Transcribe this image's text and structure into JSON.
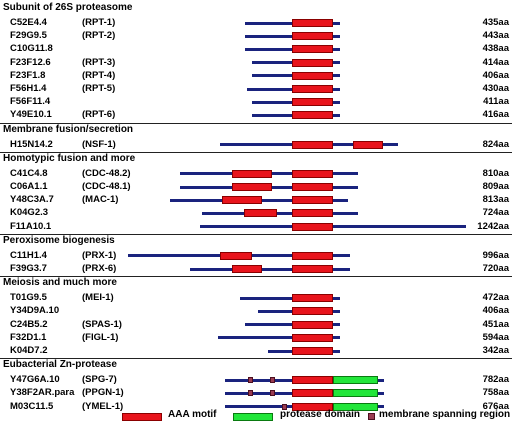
{
  "colors": {
    "backbone": "#1a237e",
    "aaa": "#e8141c",
    "protease": "#22e63a",
    "membrane": "#9a3b52"
  },
  "sections": [
    {
      "title": "Subunit of 26S proteasome",
      "proteins": [
        {
          "gene": "C52E4.4",
          "alias": "(RPT-1)",
          "length": "435aa",
          "span": [
            245,
            340
          ],
          "aaa": [
            [
              292,
              333
            ]
          ]
        },
        {
          "gene": "F29G9.5",
          "alias": "(RPT-2)",
          "length": "443aa",
          "span": [
            245,
            340
          ],
          "aaa": [
            [
              292,
              333
            ]
          ]
        },
        {
          "gene": "C10G11.8",
          "alias": "",
          "length": "438aa",
          "span": [
            245,
            340
          ],
          "aaa": [
            [
              292,
              333
            ]
          ]
        },
        {
          "gene": "F23F12.6",
          "alias": "(RPT-3)",
          "length": "414aa",
          "span": [
            252,
            340
          ],
          "aaa": [
            [
              292,
              333
            ]
          ]
        },
        {
          "gene": "F23F1.8",
          "alias": "(RPT-4)",
          "length": "406aa",
          "span": [
            252,
            340
          ],
          "aaa": [
            [
              292,
              333
            ]
          ]
        },
        {
          "gene": "F56H1.4",
          "alias": "(RPT-5)",
          "length": "430aa",
          "span": [
            247,
            340
          ],
          "aaa": [
            [
              292,
              333
            ]
          ]
        },
        {
          "gene": "F56F11.4",
          "alias": "",
          "length": "411aa",
          "span": [
            252,
            340
          ],
          "aaa": [
            [
              292,
              333
            ]
          ]
        },
        {
          "gene": "Y49E10.1",
          "alias": "(RPT-6)",
          "length": "416aa",
          "span": [
            252,
            340
          ],
          "aaa": [
            [
              292,
              333
            ]
          ]
        }
      ]
    },
    {
      "title": "Membrane fusion/secretion",
      "proteins": [
        {
          "gene": "H15N14.2",
          "alias": "(NSF-1)",
          "length": "824aa",
          "span": [
            220,
            398
          ],
          "aaa": [
            [
              292,
              333
            ],
            [
              353,
              383
            ]
          ]
        }
      ]
    },
    {
      "title": "Homotypic fusion and more",
      "proteins": [
        {
          "gene": "C41C4.8",
          "alias": "(CDC-48.2)",
          "length": "810aa",
          "span": [
            180,
            358
          ],
          "aaa": [
            [
              232,
              272
            ],
            [
              292,
              333
            ]
          ]
        },
        {
          "gene": "C06A1.1",
          "alias": "(CDC-48.1)",
          "length": "809aa",
          "span": [
            180,
            358
          ],
          "aaa": [
            [
              232,
              272
            ],
            [
              292,
              333
            ]
          ]
        },
        {
          "gene": "Y48C3A.7",
          "alias": "(MAC-1)",
          "length": "813aa",
          "span": [
            170,
            348
          ],
          "aaa": [
            [
              222,
              262
            ],
            [
              292,
              333
            ]
          ]
        },
        {
          "gene": "K04G2.3",
          "alias": "",
          "length": "724aa",
          "span": [
            202,
            358
          ],
          "aaa": [
            [
              244,
              277
            ],
            [
              292,
              333
            ]
          ]
        },
        {
          "gene": "F11A10.1",
          "alias": "",
          "length": "1242aa",
          "span": [
            200,
            466
          ],
          "aaa": [
            [
              292,
              333
            ]
          ]
        }
      ]
    },
    {
      "title": "Peroxisome biogenesis",
      "proteins": [
        {
          "gene": "C11H1.4",
          "alias": "(PRX-1)",
          "length": "996aa",
          "span": [
            128,
            350
          ],
          "aaa": [
            [
              220,
              252
            ],
            [
              292,
              333
            ]
          ]
        },
        {
          "gene": "F39G3.7",
          "alias": "(PRX-6)",
          "length": "720aa",
          "span": [
            190,
            350
          ],
          "aaa": [
            [
              232,
              262
            ],
            [
              292,
              333
            ]
          ]
        }
      ]
    },
    {
      "title": "Meiosis and much more",
      "proteins": [
        {
          "gene": "T01G9.5",
          "alias": "(MEI-1)",
          "length": "472aa",
          "span": [
            240,
            340
          ],
          "aaa": [
            [
              292,
              333
            ]
          ]
        },
        {
          "gene": "Y34D9A.10",
          "alias": "",
          "length": "406aa",
          "span": [
            258,
            340
          ],
          "aaa": [
            [
              292,
              333
            ]
          ]
        },
        {
          "gene": "C24B5.2",
          "alias": "(SPAS-1)",
          "length": "451aa",
          "span": [
            245,
            340
          ],
          "aaa": [
            [
              292,
              333
            ]
          ]
        },
        {
          "gene": "F32D1.1",
          "alias": "(FIGL-1)",
          "length": "594aa",
          "span": [
            218,
            340
          ],
          "aaa": [
            [
              292,
              333
            ]
          ]
        },
        {
          "gene": "K04D7.2",
          "alias": "",
          "length": "342aa",
          "span": [
            268,
            340
          ],
          "aaa": [
            [
              292,
              333
            ]
          ]
        }
      ]
    },
    {
      "title": "Eubacterial Zn-protease",
      "proteins": [
        {
          "gene": "Y47G6A.10",
          "alias": "(SPG-7)",
          "length": "782aa",
          "span": [
            225,
            384
          ],
          "aaa": [
            [
              292,
              333
            ]
          ],
          "prot": [
            [
              333,
              378
            ]
          ],
          "mem": [
            248,
            270
          ]
        },
        {
          "gene": "Y38F2AR.para",
          "alias": "(PPGN-1)",
          "length": "758aa",
          "span": [
            225,
            384
          ],
          "aaa": [
            [
              292,
              333
            ]
          ],
          "prot": [
            [
              333,
              378
            ]
          ],
          "mem": [
            248,
            270
          ]
        },
        {
          "gene": "M03C11.5",
          "alias": "(YMEL-1)",
          "length": "676aa",
          "span": [
            225,
            384
          ],
          "aaa": [
            [
              292,
              333
            ]
          ],
          "prot": [
            [
              333,
              378
            ]
          ],
          "mem": [
            282
          ]
        }
      ]
    }
  ],
  "legend": {
    "aaa": "AAA motif",
    "protease": "protease domain",
    "membrane": "membrane spanning region"
  }
}
